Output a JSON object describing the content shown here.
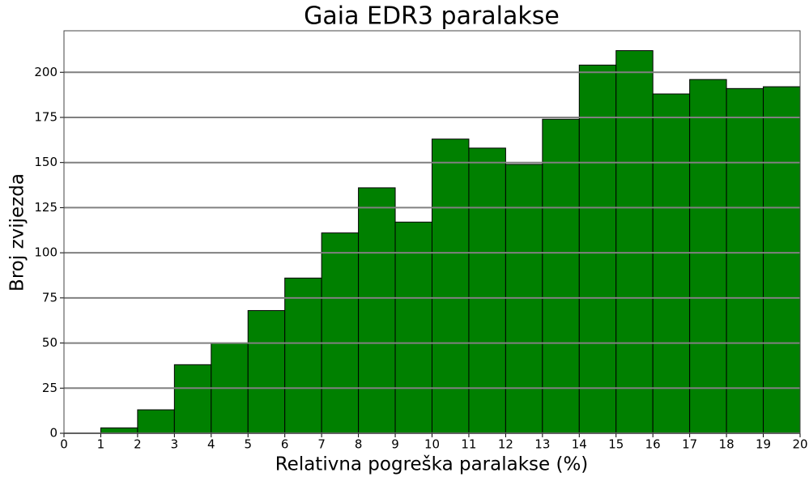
{
  "chart_data": {
    "type": "histogram",
    "title": "Gaia EDR3 paralakse",
    "x_label": "Relativna pogreška paralakse (%)",
    "y_label": "Broj zvijezda",
    "bins": [
      0,
      1,
      2,
      3,
      4,
      5,
      6,
      7,
      8,
      9,
      10,
      11,
      12,
      13,
      14,
      15,
      16,
      17,
      18,
      19,
      20
    ],
    "values": [
      0,
      3,
      13,
      38,
      50,
      68,
      86,
      111,
      136,
      117,
      163,
      158,
      149,
      174,
      204,
      212,
      188,
      196,
      191,
      192
    ],
    "color": "#008000",
    "xlim": [
      0,
      20
    ],
    "xticks": [
      0,
      1,
      2,
      3,
      4,
      5,
      6,
      7,
      8,
      9,
      10,
      11,
      12,
      13,
      14,
      15,
      16,
      17,
      18,
      19,
      20
    ],
    "ylim": [
      0,
      223
    ],
    "yticks": [
      0,
      25,
      50,
      75,
      100,
      125,
      150,
      175,
      200
    ],
    "grid": true
  }
}
